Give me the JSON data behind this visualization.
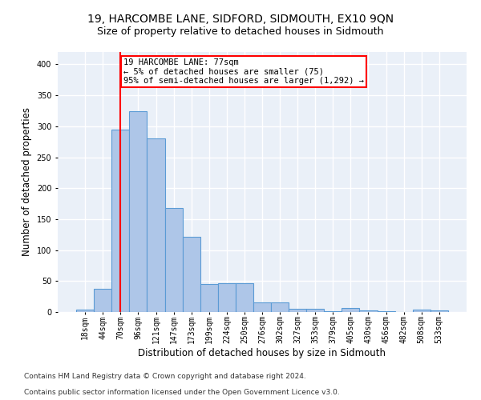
{
  "title": "19, HARCOMBE LANE, SIDFORD, SIDMOUTH, EX10 9QN",
  "subtitle": "Size of property relative to detached houses in Sidmouth",
  "xlabel": "Distribution of detached houses by size in Sidmouth",
  "ylabel": "Number of detached properties",
  "bar_color": "#aec6e8",
  "bar_edge_color": "#5b9bd5",
  "background_color": "#eaf0f8",
  "grid_color": "white",
  "categories": [
    "18sqm",
    "44sqm",
    "70sqm",
    "96sqm",
    "121sqm",
    "147sqm",
    "173sqm",
    "199sqm",
    "224sqm",
    "250sqm",
    "276sqm",
    "302sqm",
    "327sqm",
    "353sqm",
    "379sqm",
    "405sqm",
    "430sqm",
    "456sqm",
    "482sqm",
    "508sqm",
    "533sqm"
  ],
  "values": [
    4,
    38,
    295,
    325,
    280,
    168,
    122,
    45,
    47,
    47,
    15,
    15,
    5,
    5,
    1,
    6,
    3,
    1,
    0,
    4,
    3
  ],
  "red_line_x": 2.0,
  "annotation_text": "19 HARCOMBE LANE: 77sqm\n← 5% of detached houses are smaller (75)\n95% of semi-detached houses are larger (1,292) →",
  "annotation_box_color": "white",
  "annotation_box_edge_color": "red",
  "ylim": [
    0,
    420
  ],
  "yticks": [
    0,
    50,
    100,
    150,
    200,
    250,
    300,
    350,
    400
  ],
  "footnote1": "Contains HM Land Registry data © Crown copyright and database right 2024.",
  "footnote2": "Contains public sector information licensed under the Open Government Licence v3.0.",
  "title_fontsize": 10,
  "subtitle_fontsize": 9,
  "xlabel_fontsize": 8.5,
  "ylabel_fontsize": 8.5,
  "tick_fontsize": 7,
  "annotation_fontsize": 7.5,
  "footnote_fontsize": 6.5
}
